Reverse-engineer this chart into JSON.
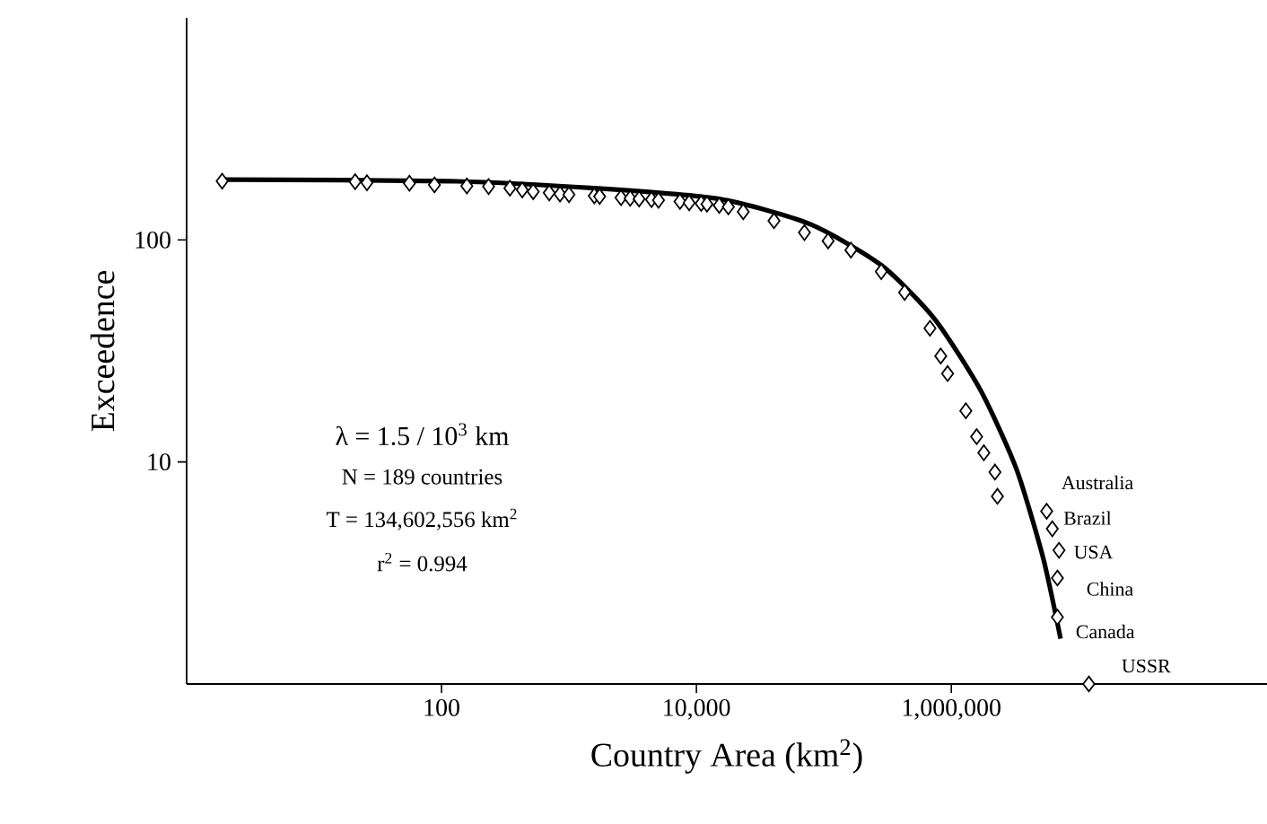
{
  "chart_data": {
    "type": "scatter",
    "xlabel": "Country Area (km$^{2}$)",
    "ylabel": "Exceedence",
    "log": "xy",
    "xlim": [
      1,
      300000000
    ],
    "ylim": [
      1,
      1000
    ],
    "xticks": [
      100,
      {
        "value": 10000,
        "label": "10,000"
      },
      {
        "value": 1000000,
        "label": "1,000,000"
      }
    ],
    "yticks": [
      10,
      100
    ],
    "grid": false,
    "series": [
      {
        "color": "#000000",
        "marker": "diamond",
        "x": [
          1.9,
          21,
          26,
          56,
          88,
          158,
          234,
          344,
          430,
          524,
          700,
          850,
          1000,
          1580,
          1740,
          2560,
          3020,
          3550,
          4440,
          5040,
          7430,
          8770,
          10900,
          12100,
          15100,
          17800,
          23300,
          40600,
          70400,
          108000,
          163000,
          282000,
          430000,
          680000,
          826000,
          935000,
          1300000,
          1580000,
          1800000,
          2200000,
          2300000,
          5600000,
          6200000,
          7000000,
          6800000,
          6800000,
          12000000
        ],
        "values": [
          184,
          183,
          181,
          180,
          177,
          175,
          174,
          171,
          168,
          165,
          163,
          161,
          160,
          158,
          157,
          155,
          154,
          153,
          152,
          151,
          149,
          147,
          146,
          145,
          143,
          141,
          134,
          122,
          108,
          99,
          90,
          72,
          58,
          40,
          30,
          25,
          17,
          13,
          11,
          9,
          7,
          6,
          5,
          4,
          3,
          2,
          1
        ]
      },
      {
        "type": "line",
        "color": "#000000",
        "line_style": "solid",
        "x": [
          2,
          117,
          1580,
          15100,
          77600,
          282000,
          741000,
          1700000,
          3240000,
          5250000,
          7200000
        ],
        "values": [
          187,
          184,
          171,
          153,
          118,
          77,
          44,
          21,
          9.3,
          3.7,
          1.6
        ]
      }
    ],
    "annotations": [
      "λ = 1.5 / 10$^{3}$ km",
      "N = 189 countries",
      "T = 134,602,556 km$^{2}$",
      "r$^{2}$ = 0.994",
      {
        "text": "Australia",
        "x": 5600000,
        "y": 6
      },
      {
        "text": "Brazil",
        "x": 6200000,
        "y": 5
      },
      {
        "text": "USA",
        "x": 7000000,
        "y": 4
      },
      {
        "text": "China",
        "x": 6800000,
        "y": 3
      },
      {
        "text": "Canada",
        "x": 6800000,
        "y": 2
      },
      {
        "text": "USSR",
        "x": 12000000,
        "y": 1
      }
    ]
  }
}
